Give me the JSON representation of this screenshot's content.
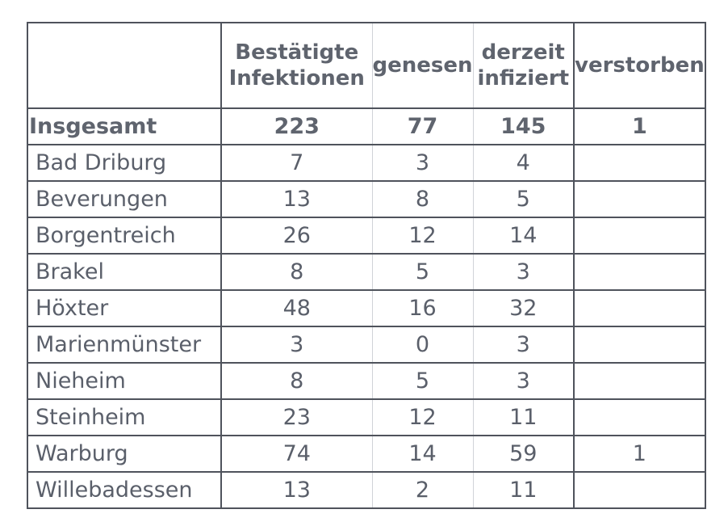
{
  "table": {
    "headers": {
      "name": "",
      "confirmed": "Bestätigte Infektionen",
      "recovered": "genesen",
      "infected": "derzeit infiziert",
      "deceased": "verstorben"
    },
    "total": {
      "name": "Insgesamt",
      "confirmed": "223",
      "recovered": "77",
      "infected": "145",
      "deceased": "1"
    },
    "rows": [
      {
        "name": "Bad Driburg",
        "confirmed": "7",
        "recovered": "3",
        "infected": "4",
        "deceased": ""
      },
      {
        "name": "Beverungen",
        "confirmed": "13",
        "recovered": "8",
        "infected": "5",
        "deceased": ""
      },
      {
        "name": "Borgentreich",
        "confirmed": "26",
        "recovered": "12",
        "infected": "14",
        "deceased": ""
      },
      {
        "name": "Brakel",
        "confirmed": "8",
        "recovered": "5",
        "infected": "3",
        "deceased": ""
      },
      {
        "name": "Höxter",
        "confirmed": "48",
        "recovered": "16",
        "infected": "32",
        "deceased": ""
      },
      {
        "name": "Marienmünster",
        "confirmed": "3",
        "recovered": "0",
        "infected": "3",
        "deceased": ""
      },
      {
        "name": "Nieheim",
        "confirmed": "8",
        "recovered": "5",
        "infected": "3",
        "deceased": ""
      },
      {
        "name": "Steinheim",
        "confirmed": "23",
        "recovered": "12",
        "infected": "11",
        "deceased": ""
      },
      {
        "name": "Warburg",
        "confirmed": "74",
        "recovered": "14",
        "infected": "59",
        "deceased": "1"
      },
      {
        "name": "Willebadessen",
        "confirmed": "13",
        "recovered": "2",
        "infected": "11",
        "deceased": ""
      }
    ]
  }
}
